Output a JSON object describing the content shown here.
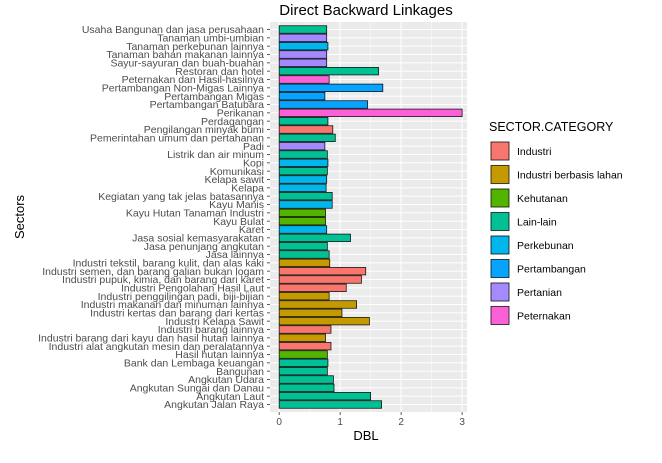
{
  "chart_data": {
    "type": "bar",
    "orientation": "horizontal",
    "title": "Direct Backward Linkages",
    "xlabel": "DBL",
    "ylabel": "Sectors",
    "xlim": [
      0,
      3
    ],
    "xticks": [
      0,
      1,
      2,
      3
    ],
    "grid": true,
    "legend": {
      "title": "SECTOR.CATEGORY",
      "placement": "right",
      "entries": [
        {
          "name": "Industri",
          "color": "#F8766D"
        },
        {
          "name": "Industri berbasis lahan",
          "color": "#C49A00"
        },
        {
          "name": "Kehutanan",
          "color": "#53B400"
        },
        {
          "name": "Lain-lain",
          "color": "#00C094"
        },
        {
          "name": "Perkebunan",
          "color": "#00B6EB"
        },
        {
          "name": "Pertambangan",
          "color": "#06A4FF"
        },
        {
          "name": "Pertanian",
          "color": "#A58AFF"
        },
        {
          "name": "Peternakan",
          "color": "#FB61D7"
        }
      ]
    },
    "bars": [
      {
        "label": "Usaha Bangunan dan jasa perusahaan",
        "value": 0.78,
        "category": "Lain-lain"
      },
      {
        "label": "Tanaman umbi-umbian",
        "value": 0.78,
        "category": "Pertanian"
      },
      {
        "label": "Tanaman perkebunan lainnya",
        "value": 0.8,
        "category": "Perkebunan"
      },
      {
        "label": "Tanaman bahan makanan lainnya",
        "value": 0.78,
        "category": "Pertanian"
      },
      {
        "label": "Sayur-sayuran dan buah-buahan",
        "value": 0.78,
        "category": "Pertanian"
      },
      {
        "label": "Restoran dan hotel",
        "value": 1.63,
        "category": "Lain-lain"
      },
      {
        "label": "Peternakan dan Hasil-hasilnya",
        "value": 0.82,
        "category": "Peternakan"
      },
      {
        "label": "Pertambangan Non-Migas Lainnya",
        "value": 1.7,
        "category": "Pertambangan"
      },
      {
        "label": "Pertambangan Migas",
        "value": 0.75,
        "category": "Pertambangan"
      },
      {
        "label": "Pertambangan Batubara",
        "value": 1.45,
        "category": "Pertambangan"
      },
      {
        "label": "Perikanan",
        "value": 3.0,
        "category": "Peternakan"
      },
      {
        "label": "Perdagangan",
        "value": 0.8,
        "category": "Lain-lain"
      },
      {
        "label": "Pengilangan minyak bumi",
        "value": 0.88,
        "category": "Industri"
      },
      {
        "label": "Pemerintahan umum dan pertahanan",
        "value": 0.92,
        "category": "Lain-lain"
      },
      {
        "label": "Padi",
        "value": 0.75,
        "category": "Pertanian"
      },
      {
        "label": "Listrik dan air minum",
        "value": 0.79,
        "category": "Lain-lain"
      },
      {
        "label": "Kopi",
        "value": 0.8,
        "category": "Perkebunan"
      },
      {
        "label": "Komunikasi",
        "value": 0.79,
        "category": "Lain-lain"
      },
      {
        "label": "Kelapa sawit",
        "value": 0.78,
        "category": "Perkebunan"
      },
      {
        "label": "Kelapa",
        "value": 0.77,
        "category": "Perkebunan"
      },
      {
        "label": "Kegiatan yang tak jelas batasannya",
        "value": 0.87,
        "category": "Lain-lain"
      },
      {
        "label": "Kayu Manis",
        "value": 0.87,
        "category": "Perkebunan"
      },
      {
        "label": "Kayu Hutan Tanaman Industri",
        "value": 0.76,
        "category": "Kehutanan"
      },
      {
        "label": "Kayu Bulat",
        "value": 0.76,
        "category": "Kehutanan"
      },
      {
        "label": "Karet",
        "value": 0.78,
        "category": "Perkebunan"
      },
      {
        "label": "Jasa sosial kemasyarakatan",
        "value": 1.17,
        "category": "Lain-lain"
      },
      {
        "label": "Jasa penunjang angkutan",
        "value": 0.79,
        "category": "Lain-lain"
      },
      {
        "label": "Jasa lainnya",
        "value": 0.82,
        "category": "Lain-lain"
      },
      {
        "label": "Industri tekstil, barang kulit, dan alas kaki",
        "value": 0.83,
        "category": "Industri berbasis lahan"
      },
      {
        "label": "Industri semen, dan barang galian bukan logam",
        "value": 1.42,
        "category": "Industri"
      },
      {
        "label": "Industri pupuk, kimia, dan barang dari karet",
        "value": 1.35,
        "category": "Industri"
      },
      {
        "label": "Industri Pengolahan Hasil Laut",
        "value": 1.1,
        "category": "Industri"
      },
      {
        "label": "Industri penggilingan padi, biji-bijian",
        "value": 0.82,
        "category": "Industri berbasis lahan"
      },
      {
        "label": "Industri makanan dan minuman lainnya",
        "value": 1.27,
        "category": "Industri berbasis lahan"
      },
      {
        "label": "Industri kertas dan barang dari kertas",
        "value": 1.03,
        "category": "Industri berbasis lahan"
      },
      {
        "label": "Industri Kelapa Sawit",
        "value": 1.48,
        "category": "Industri berbasis lahan"
      },
      {
        "label": "Industri barang lainnya",
        "value": 0.85,
        "category": "Industri"
      },
      {
        "label": "Industri barang dari kayu dan hasil hutan lainnya",
        "value": 0.76,
        "category": "Industri berbasis lahan"
      },
      {
        "label": "Industri alat angkutan mesin dan peralatannya",
        "value": 0.85,
        "category": "Industri"
      },
      {
        "label": "Hasil hutan lainnya",
        "value": 0.79,
        "category": "Kehutanan"
      },
      {
        "label": "Bank dan Lembaga keuangan",
        "value": 0.8,
        "category": "Lain-lain"
      },
      {
        "label": "Bangunan",
        "value": 0.79,
        "category": "Lain-lain"
      },
      {
        "label": "Angkutan Udara",
        "value": 0.89,
        "category": "Lain-lain"
      },
      {
        "label": "Angkutan Sungai dan Danau",
        "value": 0.9,
        "category": "Lain-lain"
      },
      {
        "label": "Angkutan Laut",
        "value": 1.5,
        "category": "Lain-lain"
      },
      {
        "label": "Angkutan Jalan Raya",
        "value": 1.68,
        "category": "Lain-lain"
      }
    ]
  }
}
